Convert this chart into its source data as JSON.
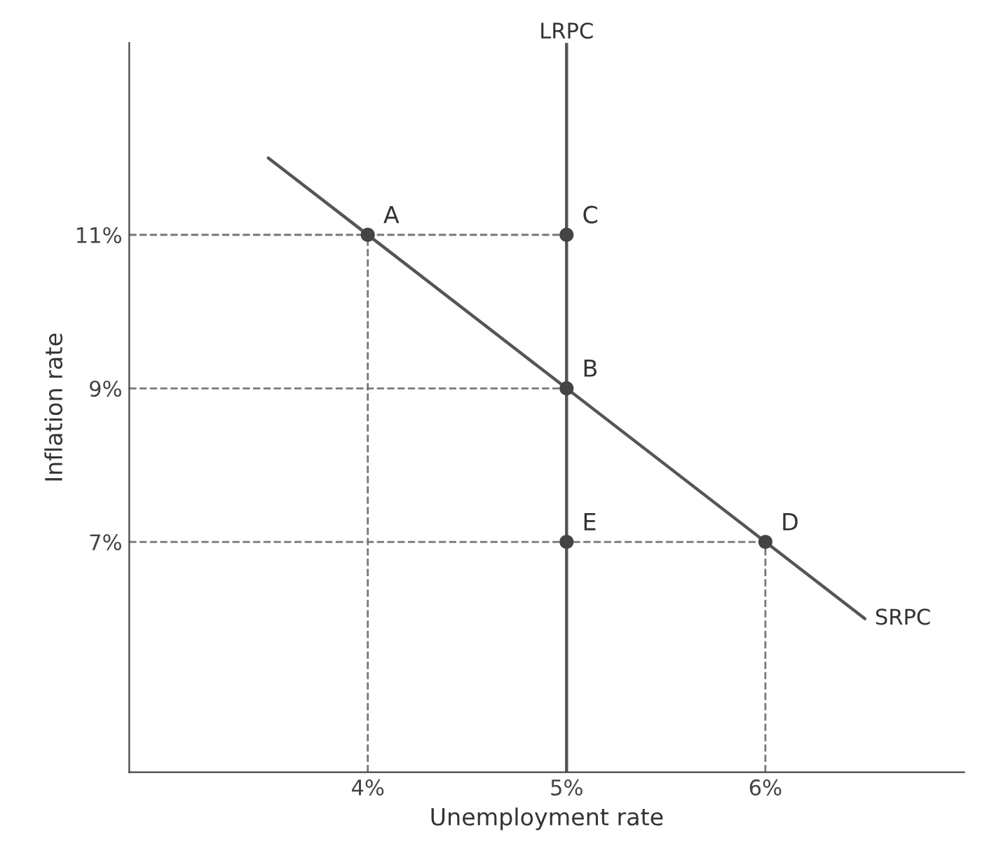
{
  "chart_data": {
    "type": "line",
    "xlabel": "Unemployment rate",
    "ylabel": "Inflation rate",
    "xlim": [
      2.8,
      7.0
    ],
    "ylim": [
      4,
      13.5
    ],
    "xticks": [
      {
        "value": 4,
        "label": "4%"
      },
      {
        "value": 5,
        "label": "5%"
      },
      {
        "value": 6,
        "label": "6%"
      }
    ],
    "yticks": [
      {
        "value": 7,
        "label": "7%"
      },
      {
        "value": 9,
        "label": "9%"
      },
      {
        "value": 11,
        "label": "11%"
      }
    ],
    "grid": false,
    "legend": false,
    "series": [
      {
        "name": "SRPC",
        "color": "#555555",
        "x": [
          3.5,
          6.5
        ],
        "values": [
          12,
          6
        ],
        "line_style": "solid"
      },
      {
        "name": "LRPC",
        "color": "#555555",
        "x": [
          5,
          5
        ],
        "values": [
          4,
          13.5
        ],
        "line_style": "solid"
      },
      {
        "color": "#777777",
        "x": [
          2.8,
          5
        ],
        "values": [
          11,
          11
        ],
        "line_style": "dashed"
      },
      {
        "color": "#777777",
        "x": [
          2.8,
          5
        ],
        "values": [
          9,
          9
        ],
        "line_style": "dashed"
      },
      {
        "color": "#777777",
        "x": [
          2.8,
          6
        ],
        "values": [
          7,
          7
        ],
        "line_style": "dashed"
      },
      {
        "color": "#777777",
        "x": [
          4,
          4
        ],
        "values": [
          4,
          11
        ],
        "line_style": "dashed"
      },
      {
        "color": "#777777",
        "x": [
          6,
          6
        ],
        "values": [
          4,
          7
        ],
        "line_style": "dashed"
      },
      {
        "type": "scatter",
        "color": "#444444",
        "marker": "circle",
        "x": [
          4,
          5,
          5,
          6,
          5
        ],
        "values": [
          11,
          11,
          9,
          7,
          7
        ]
      }
    ],
    "annotations": [
      {
        "text": "A",
        "x": 4,
        "y": 11
      },
      {
        "text": "C",
        "x": 5,
        "y": 11
      },
      {
        "text": "B",
        "x": 5,
        "y": 9
      },
      {
        "text": "D",
        "x": 6,
        "y": 7
      },
      {
        "text": "E",
        "x": 5,
        "y": 7
      }
    ]
  }
}
